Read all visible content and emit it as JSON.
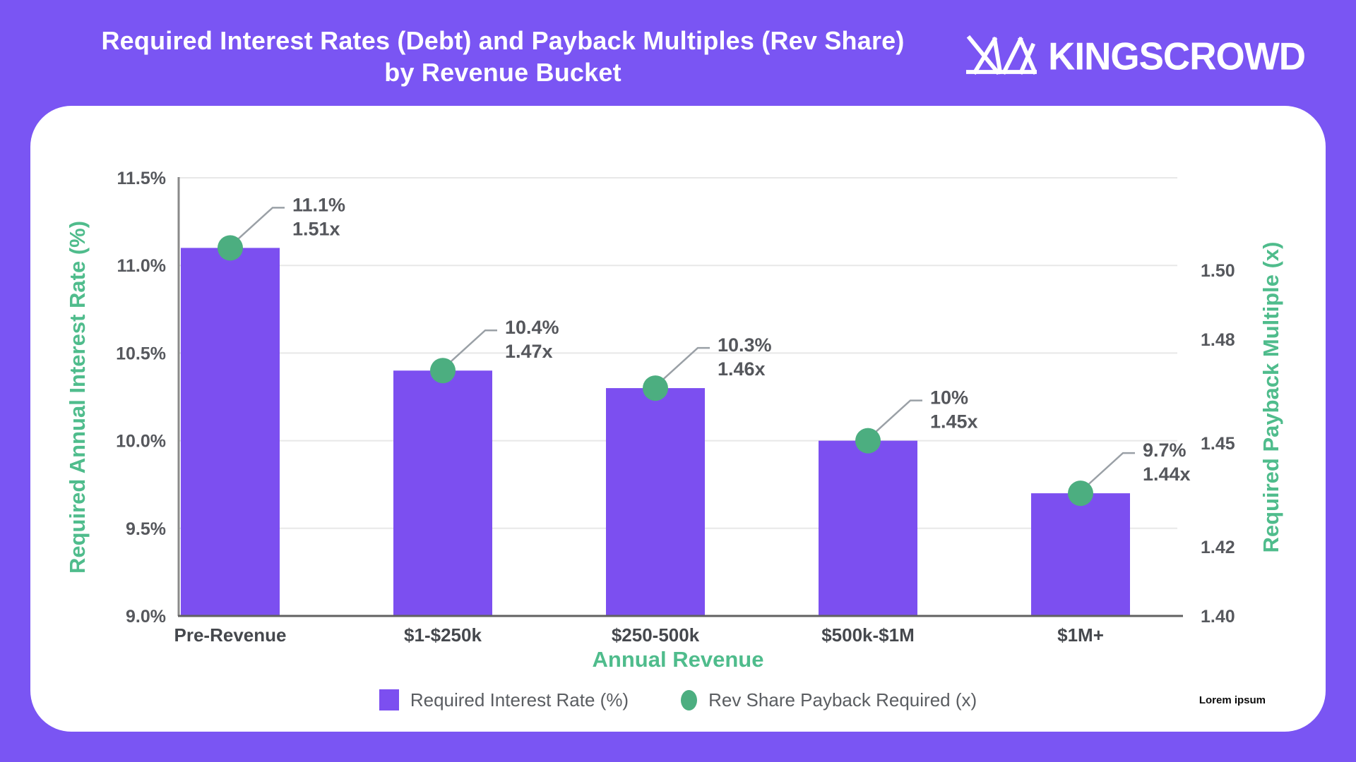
{
  "header": {
    "title_line1": "Required Interest Rates (Debt) and Payback Multiples (Rev Share)",
    "title_line2": "by Revenue Bucket",
    "brand": "KINGSCROWD"
  },
  "footnote": "Lorem ipsum",
  "colors": {
    "background": "#7A55F3",
    "card": "#FFFFFF",
    "bar": "#7C4FF0",
    "dot": "#4CAE80",
    "axis_title_green": "#4FBC8C",
    "grid": "#E8E8E8",
    "axis_line_left": "#8A8A8A",
    "axis_line_bottom": "#616161",
    "tick_text": "#56585D",
    "annotation_text": "#55575C",
    "category_text": "#45484D",
    "legend_text": "#5A5D61",
    "leader_line": "#9AA0A6",
    "title_text": "#FFFFFF"
  },
  "chart_data": {
    "type": "bar",
    "subtype": "dual-axis bar with point overlay",
    "title": "Required Interest Rates (Debt) and Payback Multiples (Rev Share) by Revenue Bucket",
    "xlabel": "Annual Revenue",
    "ylabel_left": "Required Annual Interest Rate (%)",
    "ylabel_right": "Required Payback Multiple (x)",
    "grid": true,
    "legend_position": "bottom",
    "categories": [
      "Pre-Revenue",
      "$1-$250k",
      "$250-500k",
      "$500k-$1M",
      "$1M+"
    ],
    "series": [
      {
        "name": "Required Interest Rate (%)",
        "type": "bar",
        "axis": "left",
        "values": [
          11.1,
          10.4,
          10.3,
          10.0,
          9.7
        ]
      },
      {
        "name": "Rev Share Payback Required (x)",
        "type": "scatter",
        "axis": "right",
        "values": [
          1.51,
          1.47,
          1.46,
          1.45,
          1.44
        ]
      }
    ],
    "annotations": [
      [
        "11.1%",
        "1.51x"
      ],
      [
        "10.4%",
        "1.47x"
      ],
      [
        "10.3%",
        "1.46x"
      ],
      [
        "10%",
        "1.45x"
      ],
      [
        "9.7%",
        "1.44x"
      ]
    ],
    "y_left": {
      "min": 9.0,
      "max": 11.5,
      "ticks": [
        {
          "label": "9.0%",
          "value": 9.0
        },
        {
          "label": "9.5%",
          "value": 9.5
        },
        {
          "label": "10.0%",
          "value": 10.0
        },
        {
          "label": "10.5%",
          "value": 10.5
        },
        {
          "label": "11.0%",
          "value": 11.0
        },
        {
          "label": "11.5%",
          "value": 11.5
        }
      ]
    },
    "y_right": {
      "min": 1.4,
      "ticks": [
        {
          "label": "1.40",
          "value": 1.4
        },
        {
          "label": "1.42",
          "value": 1.42
        },
        {
          "label": "1.45",
          "value": 1.45
        },
        {
          "label": "1.48",
          "value": 1.48
        },
        {
          "label": "1.50",
          "value": 1.5
        }
      ]
    }
  }
}
